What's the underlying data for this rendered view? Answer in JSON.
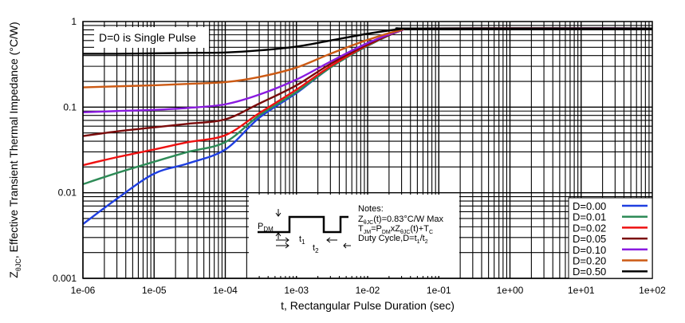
{
  "chart_data": {
    "type": "line",
    "title": "",
    "xlabel": "t, Rectangular Pulse Duration (sec)",
    "ylabel_main": "Z",
    "ylabel_sub": "θJC",
    "ylabel_rest": ", Effective Transient Thermal Impedance (°C/W)",
    "xscale": "log",
    "yscale": "log",
    "xlim": [
      1e-06,
      100
    ],
    "ylim": [
      0.001,
      1
    ],
    "grid": true,
    "xticks": [
      "1e-06",
      "1e-05",
      "1e-04",
      "1e-03",
      "1e-02",
      "1e-01",
      "1e+00",
      "1e+01",
      "1e+02"
    ],
    "yticks": [
      "0.001",
      "0.01",
      "0.1",
      "1"
    ],
    "legend_position": "bottom-right",
    "annotation": "D=0 is Single Pulse",
    "x": [
      1e-06,
      3e-06,
      1e-05,
      3e-05,
      0.0001,
      0.0003,
      0.001,
      0.003,
      0.01,
      0.03,
      0.05,
      100
    ],
    "series": [
      {
        "name": "D=0.00",
        "color": "#1f3fe0",
        "values": [
          0.0043,
          0.0085,
          0.0167,
          0.022,
          0.032,
          0.075,
          0.146,
          0.29,
          0.52,
          0.79,
          0.83,
          0.83
        ]
      },
      {
        "name": "D=0.01",
        "color": "#2e8b57",
        "values": [
          0.0126,
          0.017,
          0.023,
          0.03,
          0.039,
          0.08,
          0.15,
          0.29,
          0.52,
          0.79,
          0.83,
          0.83
        ]
      },
      {
        "name": "D=0.02",
        "color": "#ee1111",
        "values": [
          0.021,
          0.026,
          0.032,
          0.039,
          0.047,
          0.085,
          0.16,
          0.3,
          0.53,
          0.79,
          0.83,
          0.83
        ]
      },
      {
        "name": "D=0.05",
        "color": "#7a0a0a",
        "values": [
          0.046,
          0.052,
          0.058,
          0.064,
          0.072,
          0.11,
          0.18,
          0.32,
          0.54,
          0.79,
          0.83,
          0.83
        ]
      },
      {
        "name": "D=0.10",
        "color": "#8a1be0",
        "values": [
          0.087,
          0.09,
          0.093,
          0.098,
          0.108,
          0.14,
          0.21,
          0.34,
          0.56,
          0.79,
          0.83,
          0.83
        ]
      },
      {
        "name": "D=0.20",
        "color": "#cc5a14",
        "values": [
          0.17,
          0.175,
          0.18,
          0.187,
          0.196,
          0.225,
          0.29,
          0.42,
          0.61,
          0.8,
          0.83,
          0.83
        ]
      },
      {
        "name": "D=0.50",
        "color": "#000000",
        "values": [
          0.42,
          0.42,
          0.425,
          0.43,
          0.435,
          0.46,
          0.51,
          0.6,
          0.72,
          0.82,
          0.83,
          0.83
        ]
      }
    ],
    "notes": {
      "heading": "Notes:",
      "line1_main": "Z",
      "line1_sub": "θJC",
      "line1_rest": "(t)=0.83°C/W Max",
      "line2_a": "T",
      "line2_a_sub": "JM",
      "line2_b": "=P",
      "line2_b_sub": "DM",
      "line2_c": "xZ",
      "line2_c_sub": "θJC",
      "line2_d": "(t)+T",
      "line2_d_sub": "C",
      "line3_a": "Duty Cycle,D=t",
      "line3_a_sub": "1",
      "line3_b": "/t",
      "line3_b_sub": "2",
      "pdm": "P",
      "pdm_sub": "DM",
      "t1": "t",
      "t1_sub": "1",
      "t2": "t",
      "t2_sub": "2"
    }
  }
}
